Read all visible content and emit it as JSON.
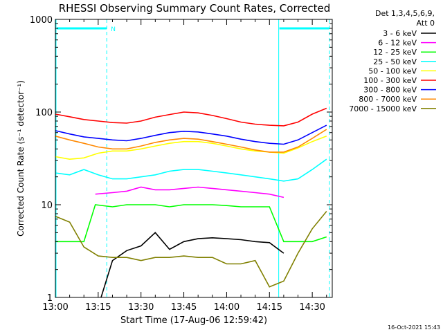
{
  "chart_data": {
    "type": "line",
    "title": "RHESSI Observing Summary Count Rates, Corrected",
    "xlabel": "Start Time (17-Aug-06 12:59:42)",
    "ylabel": "Corrected Count Rate (s⁻¹ detector⁻¹)",
    "yscale": "log",
    "ylim": [
      1,
      1000
    ],
    "xlim": [
      "13:00",
      "14:37"
    ],
    "x_ticks": [
      "13:00",
      "13:15",
      "13:30",
      "13:45",
      "14:00",
      "14:15",
      "14:30"
    ],
    "y_ticks": [
      "1",
      "10",
      "100",
      "1000"
    ],
    "legend_header": [
      "Det 1,3,4,5,6,9,",
      "Att 0"
    ],
    "legend_position": "right",
    "timestamp": "16-Oct-2021 15:43",
    "marker_label": "N",
    "night_intervals": [
      [
        "13:00",
        "13:18"
      ],
      [
        "14:18",
        "14:36"
      ]
    ],
    "vertical_lines_solid": [
      "13:00",
      "14:18"
    ],
    "vertical_lines_dashed": [
      "13:18",
      "14:36"
    ],
    "series": [
      {
        "name": "3 - 6 keV",
        "color": "#000000",
        "t": [
          "13:16",
          "13:20",
          "13:25",
          "13:30",
          "13:35",
          "13:40",
          "13:45",
          "13:50",
          "13:55",
          "14:00",
          "14:05",
          "14:10",
          "14:15",
          "14:20"
        ],
        "values": [
          1.0,
          2.5,
          3.2,
          3.6,
          5.0,
          3.3,
          4.0,
          4.3,
          4.4,
          4.3,
          4.2,
          4.0,
          3.9,
          3.0
        ]
      },
      {
        "name": "6 - 12 keV",
        "color": "#ff00ff",
        "t": [
          "13:14",
          "13:20",
          "13:25",
          "13:30",
          "13:35",
          "13:40",
          "13:45",
          "13:50",
          "13:55",
          "14:00",
          "14:05",
          "14:10",
          "14:15",
          "14:20"
        ],
        "values": [
          13,
          13.5,
          14,
          15.5,
          14.5,
          14.5,
          15,
          15.5,
          15,
          14.5,
          14,
          13.5,
          13,
          12
        ]
      },
      {
        "name": "12 - 25 keV",
        "color": "#00ff00",
        "t": [
          "13:00",
          "13:10",
          "13:14",
          "13:20",
          "13:25",
          "13:30",
          "13:35",
          "13:40",
          "13:45",
          "13:50",
          "13:55",
          "14:00",
          "14:05",
          "14:10",
          "14:15",
          "14:20",
          "14:25",
          "14:30",
          "14:35"
        ],
        "values": [
          4,
          4,
          10,
          9.5,
          10,
          10,
          10,
          9.5,
          10,
          10,
          10,
          9.8,
          9.5,
          9.5,
          9.5,
          4,
          4,
          4,
          4.5
        ]
      },
      {
        "name": "25 - 50 keV",
        "color": "#00ffff",
        "t": [
          "13:00",
          "13:05",
          "13:10",
          "13:15",
          "13:20",
          "13:25",
          "13:30",
          "13:35",
          "13:40",
          "13:45",
          "13:50",
          "13:55",
          "14:00",
          "14:05",
          "14:10",
          "14:15",
          "14:20",
          "14:25",
          "14:30",
          "14:35"
        ],
        "values": [
          22,
          21,
          24,
          21,
          19,
          19,
          20,
          21,
          23,
          24,
          24,
          23,
          22,
          21,
          20,
          19,
          18,
          19,
          24,
          31
        ]
      },
      {
        "name": "50 - 100 keV",
        "color": "#ffff00",
        "t": [
          "13:00",
          "13:05",
          "13:10",
          "13:15",
          "13:20",
          "13:25",
          "13:30",
          "13:35",
          "13:40",
          "13:45",
          "13:50",
          "13:55",
          "14:00",
          "14:05",
          "14:10",
          "14:15",
          "14:20",
          "14:25",
          "14:30",
          "14:35"
        ],
        "values": [
          33,
          31,
          32,
          36,
          38,
          38,
          40,
          43,
          46,
          48,
          48,
          46,
          43,
          40,
          38,
          37,
          36,
          41,
          48,
          55
        ]
      },
      {
        "name": "100 - 300 keV",
        "color": "#ff0000",
        "t": [
          "13:00",
          "13:05",
          "13:10",
          "13:15",
          "13:20",
          "13:25",
          "13:30",
          "13:35",
          "13:40",
          "13:45",
          "13:50",
          "13:55",
          "14:00",
          "14:05",
          "14:10",
          "14:15",
          "14:20",
          "14:25",
          "14:30",
          "14:35"
        ],
        "values": [
          95,
          89,
          83,
          80,
          77,
          76,
          80,
          88,
          94,
          100,
          98,
          92,
          85,
          78,
          74,
          72,
          71,
          78,
          95,
          110
        ]
      },
      {
        "name": "300 - 800 keV",
        "color": "#0000ff",
        "t": [
          "13:00",
          "13:05",
          "13:10",
          "13:15",
          "13:20",
          "13:25",
          "13:30",
          "13:35",
          "13:40",
          "13:45",
          "13:50",
          "13:55",
          "14:00",
          "14:05",
          "14:10",
          "14:15",
          "14:20",
          "14:25",
          "14:30",
          "14:35"
        ],
        "values": [
          63,
          58,
          54,
          52,
          50,
          49,
          52,
          56,
          60,
          62,
          61,
          58,
          55,
          51,
          48,
          46,
          45,
          50,
          60,
          72
        ]
      },
      {
        "name": "800 - 7000 keV",
        "color": "#ff8800",
        "t": [
          "13:00",
          "13:05",
          "13:10",
          "13:15",
          "13:20",
          "13:25",
          "13:30",
          "13:35",
          "13:40",
          "13:45",
          "13:50",
          "13:55",
          "14:00",
          "14:05",
          "14:10",
          "14:15",
          "14:20",
          "14:25",
          "14:30",
          "14:35"
        ],
        "values": [
          55,
          50,
          46,
          42,
          40,
          40,
          43,
          47,
          50,
          52,
          51,
          48,
          45,
          42,
          39,
          37,
          37,
          42,
          52,
          65
        ]
      },
      {
        "name": "7000 - 15000 keV",
        "color": "#808000",
        "t": [
          "13:00",
          "13:05",
          "13:10",
          "13:15",
          "13:20",
          "13:25",
          "13:30",
          "13:35",
          "13:40",
          "13:45",
          "13:50",
          "13:55",
          "14:00",
          "14:05",
          "14:10",
          "14:15",
          "14:20",
          "14:25",
          "14:30",
          "14:35"
        ],
        "values": [
          7.5,
          6.5,
          3.5,
          2.8,
          2.7,
          2.7,
          2.5,
          2.7,
          2.7,
          2.8,
          2.7,
          2.7,
          2.3,
          2.3,
          2.5,
          1.3,
          1.5,
          3.0,
          5.5,
          8.5
        ]
      }
    ]
  }
}
